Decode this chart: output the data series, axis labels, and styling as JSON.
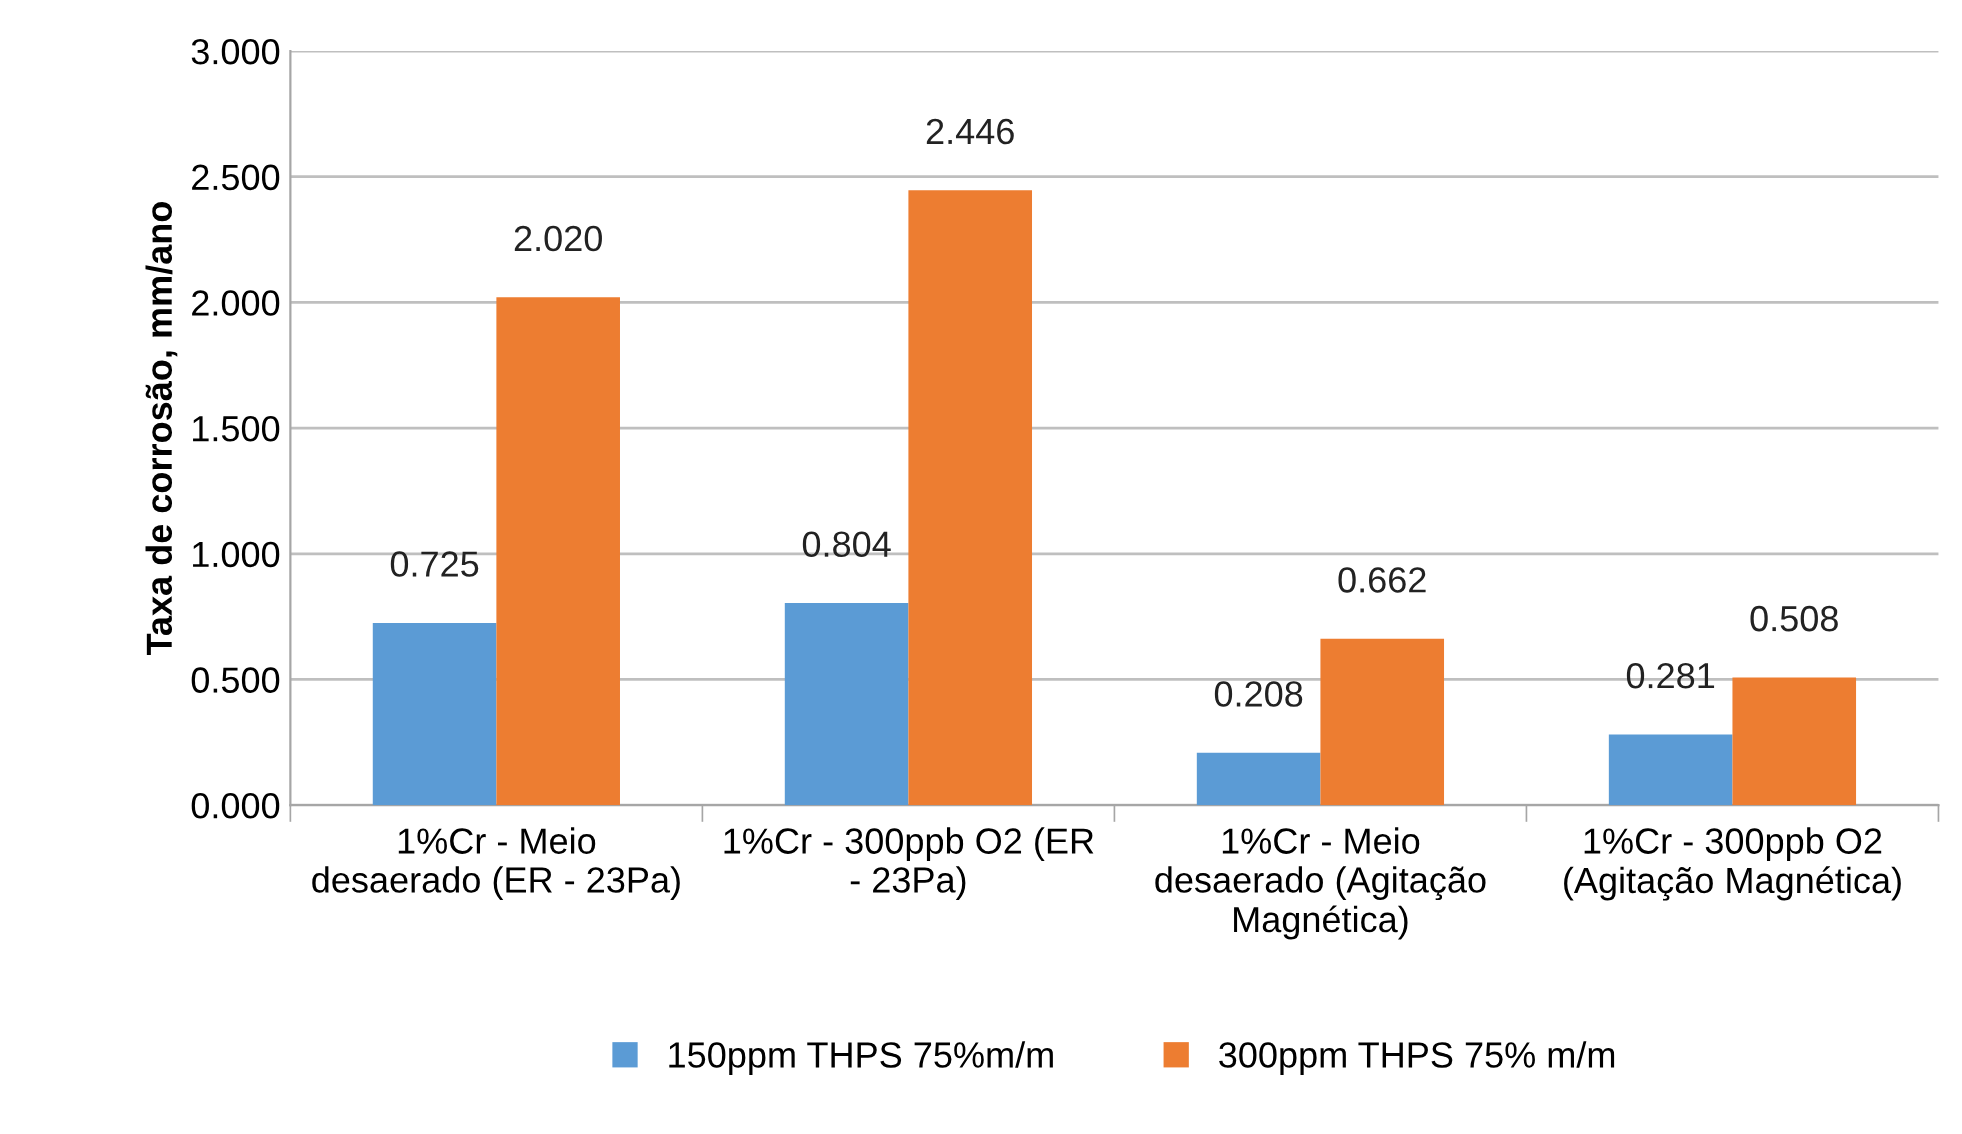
{
  "chart_data": {
    "type": "bar",
    "ylabel": "Taxa de corrosão, mm/ano",
    "categories": [
      "1%Cr - Meio\ndesaerado (ER - 23Pa)",
      "1%Cr - 300ppb O2 (ER\n- 23Pa)",
      "1%Cr - Meio\ndesaerado (Agitação\nMagnética)",
      "1%Cr - 300ppb O2\n(Agitação Magnética)"
    ],
    "series": [
      {
        "name": "150ppm THPS 75%m/m",
        "color": "#5b9bd5",
        "values": [
          0.725,
          0.804,
          0.208,
          0.281
        ],
        "value_labels": [
          "0.725",
          "0.804",
          "0.208",
          "0.281"
        ]
      },
      {
        "name": "300ppm THPS 75% m/m",
        "color": "#ed7d31",
        "values": [
          2.02,
          2.446,
          0.662,
          0.508
        ],
        "value_labels": [
          "2.020",
          "2.446",
          "0.662",
          "0.508"
        ]
      }
    ],
    "ylim": [
      0,
      3
    ],
    "yticks": [
      {
        "value": 0,
        "label": "0.000"
      },
      {
        "value": 0.5,
        "label": "0.500"
      },
      {
        "value": 1,
        "label": "1.000"
      },
      {
        "value": 1.5,
        "label": "1.500"
      },
      {
        "value": 2,
        "label": "2.000"
      },
      {
        "value": 2.5,
        "label": "2.500"
      },
      {
        "value": 3,
        "label": "3.000"
      }
    ],
    "grid": "y",
    "legend": "bottom"
  }
}
